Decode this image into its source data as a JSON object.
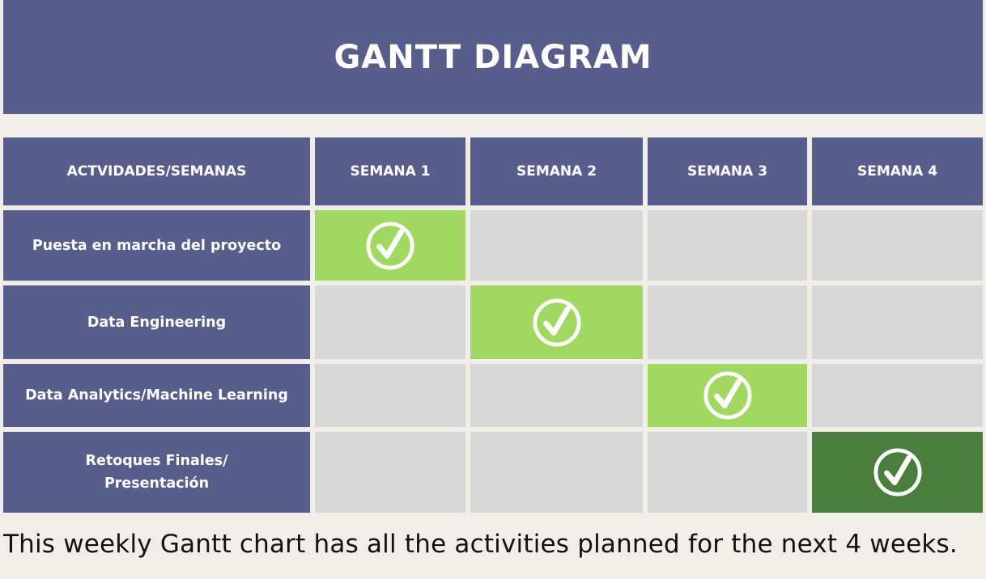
{
  "title": "GANTT DIAGRAM",
  "headers": [
    "ACTVIDADES/SEMANAS",
    "SEMANA 1",
    "SEMANA 2",
    "SEMANA 3",
    "SEMANA 4"
  ],
  "activities": [
    {
      "label_line1": "Puesta en marcha del proyecto",
      "label_line2": "",
      "active_week": 1
    },
    {
      "label_line1": "Data Engineering",
      "label_line2": "",
      "active_week": 2
    },
    {
      "label_line1": "Data Analytics/Machine Learning",
      "label_line2": "",
      "active_week": 3
    },
    {
      "label_line1": "Retoques Finales/",
      "label_line2": "Presentación",
      "active_week": 4
    }
  ],
  "footer": "This weekly Gantt chart has all the activities planned for the next 4 weeks.",
  "colors": {
    "header_bg": "#585e8c",
    "empty_cell": "#d8d8d8",
    "active_light": "#a0d862",
    "active_dark": "#4a7e3d",
    "background": "#f1ede9"
  },
  "icons": {
    "task_done": "check-circle-icon"
  }
}
